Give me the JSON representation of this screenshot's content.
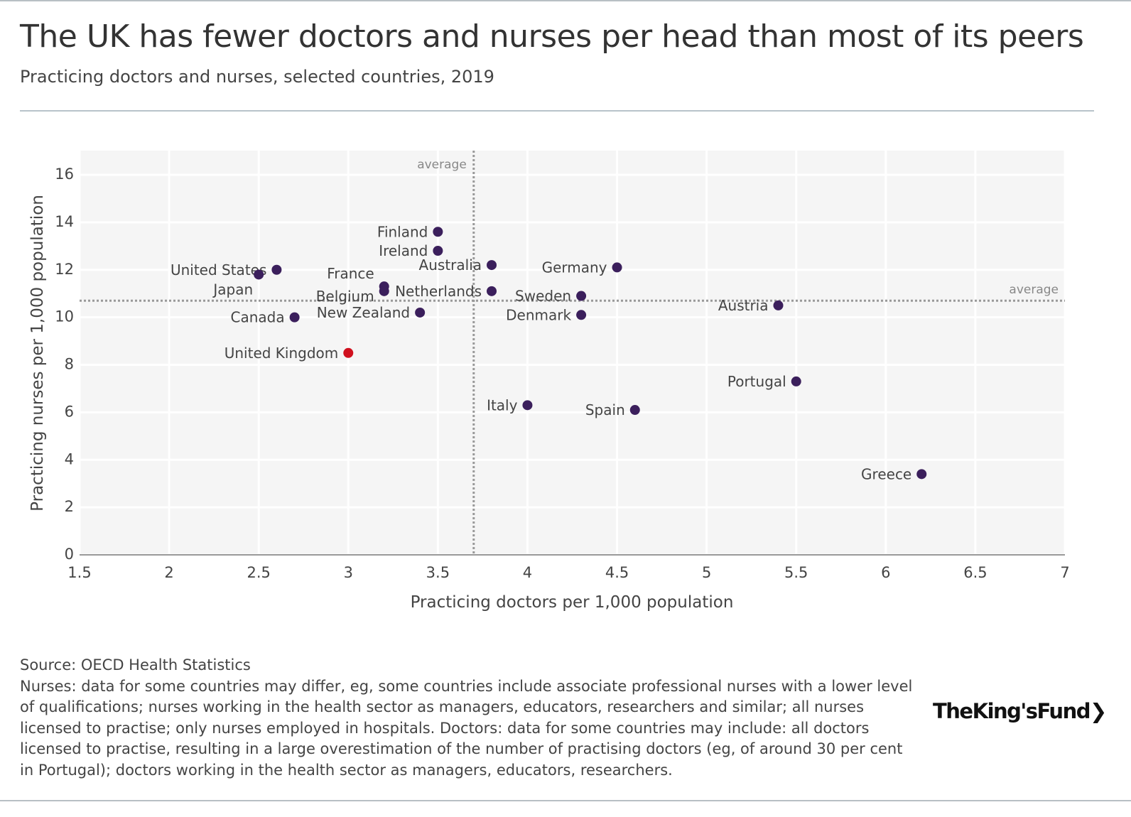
{
  "title": "The UK has fewer doctors and nurses per head than most of its peers",
  "subtitle": "Practicing doctors and nurses, selected countries, 2019",
  "source": "Source: OECD Health Statistics",
  "note": "Nurses: data for some countries may differ, eg, some countries include associate professional nurses with a lower level of qualifications; nurses working in the health sector as managers, educators, researchers and similar; all nurses licensed to practise; only nurses employed in hospitals. Doctors: data for some countries may include: all doctors licensed to practise, resulting in a large overestimation of the number of practising doctors (eg, of around 30 per cent in Portugal); doctors working in the health sector as managers, educators, researchers.",
  "logo": "The King's Fund",
  "chart_data": {
    "type": "scatter",
    "xlabel": "Practicing doctors per 1,000 population",
    "ylabel": "Practicing nurses per 1,000 population",
    "xlim": [
      1.5,
      7
    ],
    "ylim": [
      0,
      17
    ],
    "xticks": [
      "1.5",
      "2",
      "2.5",
      "3",
      "3.5",
      "4",
      "4.5",
      "5",
      "5.5",
      "6",
      "6.5",
      "7"
    ],
    "yticks": [
      "0",
      "2",
      "4",
      "6",
      "8",
      "10",
      "12",
      "14",
      "16"
    ],
    "grid": true,
    "colors": {
      "default": "#3b1f5c",
      "highlight": "#d0101e"
    },
    "reference_lines": [
      {
        "axis": "x",
        "value": 3.7,
        "label": "average"
      },
      {
        "axis": "y",
        "value": 10.7,
        "label": "average"
      }
    ],
    "points": [
      {
        "label": "Finland",
        "x": 3.5,
        "y": 13.6
      },
      {
        "label": "Ireland",
        "x": 3.5,
        "y": 12.8
      },
      {
        "label": "United States",
        "x": 2.6,
        "y": 12.0
      },
      {
        "label": "Japan",
        "x": 2.5,
        "y": 11.8
      },
      {
        "label": "Australia",
        "x": 3.8,
        "y": 12.2
      },
      {
        "label": "Germany",
        "x": 4.5,
        "y": 12.1
      },
      {
        "label": "France",
        "x": 3.2,
        "y": 11.3
      },
      {
        "label": "Belgium",
        "x": 3.2,
        "y": 11.1
      },
      {
        "label": "Netherlands",
        "x": 3.8,
        "y": 11.1
      },
      {
        "label": "Sweden",
        "x": 4.3,
        "y": 10.9
      },
      {
        "label": "Austria",
        "x": 5.4,
        "y": 10.5
      },
      {
        "label": "New Zealand",
        "x": 3.4,
        "y": 10.2
      },
      {
        "label": "Denmark",
        "x": 4.3,
        "y": 10.1
      },
      {
        "label": "Canada",
        "x": 2.7,
        "y": 10.0
      },
      {
        "label": "United Kingdom",
        "x": 3.0,
        "y": 8.5,
        "highlight": true
      },
      {
        "label": "Portugal",
        "x": 5.5,
        "y": 7.3
      },
      {
        "label": "Italy",
        "x": 4.0,
        "y": 6.3
      },
      {
        "label": "Spain",
        "x": 4.6,
        "y": 6.1
      },
      {
        "label": "Greece",
        "x": 6.2,
        "y": 3.4
      }
    ]
  }
}
